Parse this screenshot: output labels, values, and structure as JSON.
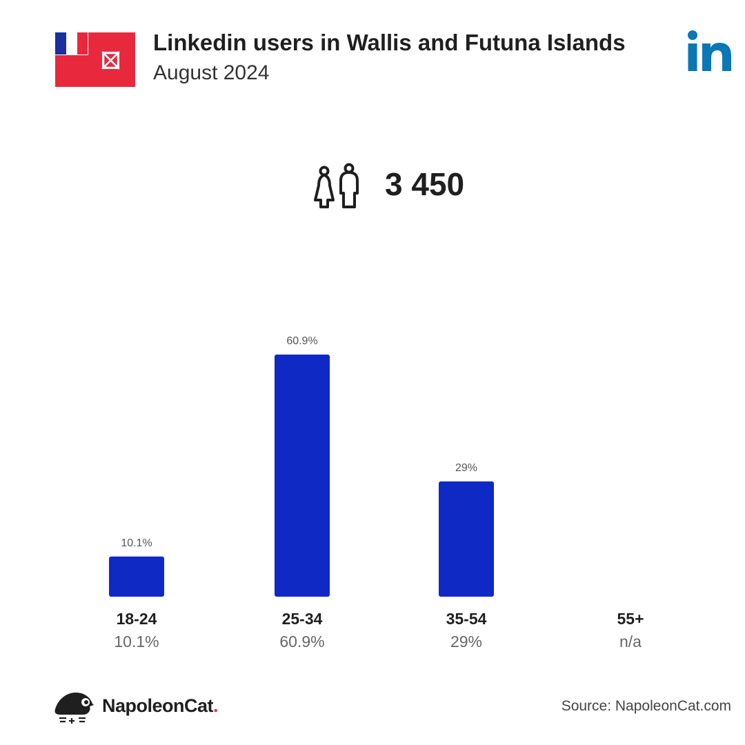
{
  "header": {
    "title": "Linkedin users in Wallis and Futuna Islands",
    "subtitle": "August 2024"
  },
  "summary": {
    "total_users": "3 450"
  },
  "icons": {
    "flag": "wallis-and-futuna-flag-icon",
    "brand": "linkedin-logo-icon",
    "users": "people-icon",
    "footer_logo": "napoleoncat-logo-icon"
  },
  "colors": {
    "bar": "#0f2ac4",
    "linkedin": "#0a78b5",
    "flag_red": "#e8293d",
    "flag_blue": "#1a2fa0"
  },
  "chart_data": {
    "type": "bar",
    "categories": [
      "18-24",
      "25-34",
      "35-54",
      "55+"
    ],
    "values": [
      10.1,
      60.9,
      29,
      null
    ],
    "value_labels": [
      "10.1%",
      "60.9%",
      "29%",
      "n/a"
    ],
    "bar_labels": [
      "10.1%",
      "60.9%",
      "29%",
      ""
    ],
    "ylim": [
      0,
      60.9
    ],
    "grid": false
  },
  "footer": {
    "brand_name": "NapoleonCat",
    "brand_dot": ".",
    "source": "Source: NapoleonCat.com"
  }
}
